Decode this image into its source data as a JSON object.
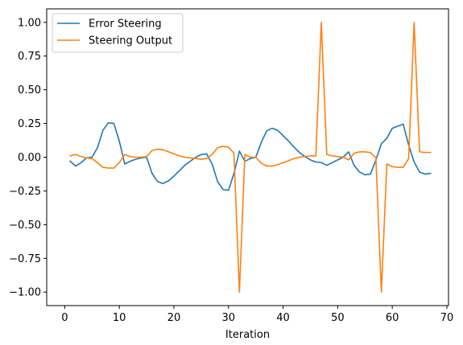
{
  "chart_data": {
    "type": "line",
    "title": "",
    "xlabel": "Iteration",
    "ylabel": "",
    "xlim": [
      -3.3,
      70.3
    ],
    "ylim": [
      -1.1,
      1.1
    ],
    "x_ticks": [
      0,
      10,
      20,
      30,
      40,
      50,
      60,
      70
    ],
    "x_tick_labels": [
      "0",
      "10",
      "20",
      "30",
      "40",
      "50",
      "60",
      "70"
    ],
    "y_ticks": [
      -1.0,
      -0.75,
      -0.5,
      -0.25,
      0.0,
      0.25,
      0.5,
      0.75,
      1.0
    ],
    "y_tick_labels": [
      "−1.00",
      "−0.75",
      "−0.50",
      "−0.25",
      "0.00",
      "0.25",
      "0.50",
      "0.75",
      "1.00"
    ],
    "grid": false,
    "legend_position": "top-left",
    "x": [
      1,
      2,
      3,
      4,
      5,
      6,
      7,
      8,
      9,
      10,
      11,
      12,
      13,
      14,
      15,
      16,
      17,
      18,
      19,
      20,
      21,
      22,
      23,
      24,
      25,
      26,
      27,
      28,
      29,
      30,
      31,
      32,
      33,
      34,
      35,
      36,
      37,
      38,
      39,
      40,
      41,
      42,
      43,
      44,
      45,
      46,
      47,
      48,
      49,
      50,
      51,
      52,
      53,
      54,
      55,
      56,
      57,
      58,
      59,
      60,
      61,
      62,
      63,
      64,
      65,
      66,
      67
    ],
    "series": [
      {
        "name": "Error Steering",
        "color": "#1f77b4",
        "values": [
          -0.03,
          -0.065,
          -0.04,
          -0.005,
          0.0,
          0.07,
          0.2,
          0.255,
          0.25,
          0.12,
          -0.05,
          -0.03,
          -0.015,
          -0.005,
          0.0,
          -0.12,
          -0.18,
          -0.195,
          -0.175,
          -0.14,
          -0.1,
          -0.06,
          -0.03,
          0.0,
          0.02,
          0.025,
          -0.05,
          -0.18,
          -0.24,
          -0.245,
          -0.12,
          0.045,
          -0.03,
          -0.01,
          0.0,
          0.11,
          0.195,
          0.215,
          0.2,
          0.16,
          0.12,
          0.075,
          0.035,
          0.005,
          -0.02,
          -0.035,
          -0.04,
          -0.06,
          -0.04,
          -0.02,
          0.0,
          0.04,
          -0.06,
          -0.11,
          -0.13,
          -0.125,
          -0.02,
          0.1,
          0.14,
          0.215,
          0.23,
          0.245,
          0.09,
          -0.035,
          -0.11,
          -0.125,
          -0.12
        ]
      },
      {
        "name": "Steering Output",
        "color": "#ff7f0e",
        "values": [
          0.01,
          0.02,
          0.005,
          -0.005,
          -0.01,
          -0.04,
          -0.075,
          -0.08,
          -0.08,
          -0.04,
          0.02,
          0.005,
          0.0,
          0.0,
          0.005,
          0.05,
          0.06,
          0.055,
          0.04,
          0.025,
          0.01,
          0.0,
          -0.005,
          -0.01,
          -0.015,
          -0.01,
          0.02,
          0.07,
          0.08,
          0.075,
          0.03,
          -1.0,
          0.02,
          0.0,
          0.0,
          -0.045,
          -0.065,
          -0.065,
          -0.055,
          -0.04,
          -0.025,
          -0.01,
          0.0,
          0.005,
          0.01,
          0.01,
          1.0,
          0.02,
          0.01,
          0.005,
          0.0,
          -0.02,
          0.03,
          0.04,
          0.04,
          0.035,
          -0.005,
          -1.0,
          -0.05,
          -0.07,
          -0.075,
          -0.075,
          -0.01,
          1.0,
          0.04,
          0.035,
          0.035
        ]
      }
    ]
  }
}
